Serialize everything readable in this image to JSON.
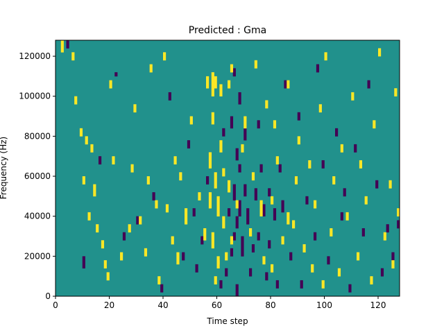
{
  "chart_data": {
    "type": "heatmap",
    "title": "Predicted : Gma",
    "xlabel": "Time step",
    "ylabel": "Frequency (Hz)",
    "xlim": [
      0,
      128
    ],
    "ylim": [
      0,
      128000
    ],
    "x_ticks": [
      0,
      20,
      40,
      60,
      80,
      100,
      120
    ],
    "x_tick_labels": [
      "0",
      "20",
      "40",
      "60",
      "80",
      "100",
      "120"
    ],
    "y_ticks": [
      0,
      20000,
      40000,
      60000,
      80000,
      100000,
      120000
    ],
    "y_tick_labels": [
      "0",
      "20000",
      "40000",
      "60000",
      "80000",
      "100000",
      "120000"
    ],
    "grid": false,
    "colors": {
      "background": "#21918c",
      "high": "#fde725",
      "low": "#440154"
    },
    "n_time_steps": 128,
    "n_frequency_bins": 64,
    "freq_bin_hz": 2000,
    "high_segments": [
      [
        2,
        122000,
        128000
      ],
      [
        6,
        118000,
        122000
      ],
      [
        7,
        96000,
        100000
      ],
      [
        9,
        80000,
        84000
      ],
      [
        10,
        56000,
        60000
      ],
      [
        11,
        76000,
        80000
      ],
      [
        12,
        38000,
        42000
      ],
      [
        13,
        72000,
        76000
      ],
      [
        14,
        50000,
        56000
      ],
      [
        15,
        32000,
        36000
      ],
      [
        17,
        24000,
        28000
      ],
      [
        18,
        14000,
        18000
      ],
      [
        19,
        8000,
        12000
      ],
      [
        20,
        104000,
        108000
      ],
      [
        21,
        66000,
        70000
      ],
      [
        24,
        18000,
        22000
      ],
      [
        27,
        32000,
        36000
      ],
      [
        28,
        62000,
        66000
      ],
      [
        29,
        92000,
        96000
      ],
      [
        31,
        36000,
        40000
      ],
      [
        33,
        20000,
        24000
      ],
      [
        34,
        56000,
        60000
      ],
      [
        35,
        112000,
        116000
      ],
      [
        37,
        44000,
        48000
      ],
      [
        38,
        6000,
        10000
      ],
      [
        40,
        118000,
        122000
      ],
      [
        41,
        42000,
        46000
      ],
      [
        43,
        26000,
        30000
      ],
      [
        45,
        16000,
        22000
      ],
      [
        46,
        58000,
        62000
      ],
      [
        48,
        36000,
        44000
      ],
      [
        50,
        86000,
        90000
      ],
      [
        53,
        48000,
        52000
      ],
      [
        55,
        28000,
        34000
      ],
      [
        56,
        104000,
        110000
      ],
      [
        57,
        68000,
        72000
      ],
      [
        57,
        44000,
        52000
      ],
      [
        58,
        24000,
        32000
      ],
      [
        58,
        86000,
        92000
      ],
      [
        58,
        100000,
        112000
      ],
      [
        59,
        6000,
        10000
      ],
      [
        59,
        54000,
        62000
      ],
      [
        60,
        40000,
        50000
      ],
      [
        60,
        14000,
        18000
      ],
      [
        61,
        72000,
        78000
      ],
      [
        61,
        100000,
        106000
      ],
      [
        62,
        34000,
        40000
      ],
      [
        62,
        60000,
        64000
      ],
      [
        63,
        18000,
        22000
      ],
      [
        64,
        52000,
        58000
      ],
      [
        64,
        104000,
        108000
      ],
      [
        65,
        26000,
        30000
      ],
      [
        65,
        112000,
        116000
      ],
      [
        67,
        44000,
        48000
      ],
      [
        69,
        72000,
        76000
      ],
      [
        70,
        84000,
        90000
      ],
      [
        72,
        30000,
        34000
      ],
      [
        73,
        58000,
        62000
      ],
      [
        74,
        114000,
        118000
      ],
      [
        76,
        40000,
        48000
      ],
      [
        77,
        16000,
        20000
      ],
      [
        78,
        94000,
        98000
      ],
      [
        80,
        46000,
        50000
      ],
      [
        80,
        12000,
        16000
      ],
      [
        81,
        84000,
        88000
      ],
      [
        82,
        66000,
        70000
      ],
      [
        84,
        26000,
        30000
      ],
      [
        86,
        104000,
        108000
      ],
      [
        88,
        34000,
        38000
      ],
      [
        89,
        56000,
        60000
      ],
      [
        90,
        76000,
        80000
      ],
      [
        92,
        22000,
        26000
      ],
      [
        94,
        64000,
        68000
      ],
      [
        96,
        44000,
        48000
      ],
      [
        98,
        92000,
        96000
      ],
      [
        99,
        4000,
        8000
      ],
      [
        100,
        118000,
        122000
      ],
      [
        102,
        30000,
        34000
      ],
      [
        103,
        56000,
        60000
      ],
      [
        105,
        10000,
        14000
      ],
      [
        106,
        72000,
        76000
      ],
      [
        108,
        38000,
        42000
      ],
      [
        110,
        98000,
        102000
      ],
      [
        112,
        18000,
        22000
      ],
      [
        113,
        64000,
        68000
      ],
      [
        115,
        46000,
        50000
      ],
      [
        117,
        6000,
        10000
      ],
      [
        118,
        84000,
        88000
      ],
      [
        120,
        120000,
        124000
      ],
      [
        122,
        28000,
        32000
      ],
      [
        124,
        54000,
        58000
      ],
      [
        125,
        14000,
        18000
      ],
      [
        126,
        100000,
        104000
      ],
      [
        127,
        40000,
        44000
      ],
      [
        95,
        12000,
        16000
      ],
      [
        44,
        66000,
        70000
      ],
      [
        86,
        36000,
        42000
      ],
      [
        60,
        16000,
        20000
      ],
      [
        59,
        104000,
        110000
      ],
      [
        57,
        64000,
        68000
      ]
    ],
    "low_segments": [
      [
        4,
        124000,
        128000
      ],
      [
        10,
        14000,
        20000
      ],
      [
        16,
        66000,
        70000
      ],
      [
        22,
        110000,
        112000
      ],
      [
        25,
        28000,
        32000
      ],
      [
        30,
        36000,
        40000
      ],
      [
        36,
        48000,
        52000
      ],
      [
        39,
        2000,
        6000
      ],
      [
        42,
        98000,
        102000
      ],
      [
        47,
        18000,
        22000
      ],
      [
        49,
        74000,
        78000
      ],
      [
        51,
        40000,
        44000
      ],
      [
        52,
        12000,
        16000
      ],
      [
        54,
        26000,
        30000
      ],
      [
        56,
        56000,
        60000
      ],
      [
        62,
        80000,
        84000
      ],
      [
        63,
        10000,
        14000
      ],
      [
        64,
        40000,
        44000
      ],
      [
        65,
        20000,
        24000
      ],
      [
        65,
        84000,
        90000
      ],
      [
        66,
        48000,
        56000
      ],
      [
        66,
        28000,
        32000
      ],
      [
        66,
        110000,
        114000
      ],
      [
        67,
        34000,
        40000
      ],
      [
        67,
        68000,
        74000
      ],
      [
        67,
        0,
        6000
      ],
      [
        68,
        40000,
        48000
      ],
      [
        68,
        62000,
        66000
      ],
      [
        68,
        96000,
        102000
      ],
      [
        69,
        20000,
        30000
      ],
      [
        70,
        50000,
        56000
      ],
      [
        70,
        78000,
        84000
      ],
      [
        71,
        36000,
        44000
      ],
      [
        72,
        10000,
        14000
      ],
      [
        73,
        22000,
        26000
      ],
      [
        74,
        48000,
        54000
      ],
      [
        75,
        28000,
        32000
      ],
      [
        75,
        84000,
        88000
      ],
      [
        76,
        62000,
        66000
      ],
      [
        77,
        40000,
        46000
      ],
      [
        78,
        8000,
        12000
      ],
      [
        79,
        24000,
        28000
      ],
      [
        79,
        50000,
        54000
      ],
      [
        81,
        38000,
        44000
      ],
      [
        82,
        4000,
        8000
      ],
      [
        83,
        62000,
        66000
      ],
      [
        84,
        42000,
        48000
      ],
      [
        85,
        104000,
        108000
      ],
      [
        87,
        18000,
        22000
      ],
      [
        89,
        56000,
        60000
      ],
      [
        90,
        88000,
        92000
      ],
      [
        91,
        4000,
        8000
      ],
      [
        93,
        46000,
        50000
      ],
      [
        96,
        28000,
        32000
      ],
      [
        97,
        112000,
        116000
      ],
      [
        99,
        64000,
        68000
      ],
      [
        101,
        16000,
        20000
      ],
      [
        104,
        80000,
        84000
      ],
      [
        106,
        38000,
        42000
      ],
      [
        107,
        50000,
        54000
      ],
      [
        109,
        2000,
        6000
      ],
      [
        111,
        72000,
        76000
      ],
      [
        114,
        30000,
        34000
      ],
      [
        116,
        104000,
        108000
      ],
      [
        119,
        54000,
        58000
      ],
      [
        121,
        10000,
        14000
      ],
      [
        123,
        32000,
        36000
      ],
      [
        125,
        18000,
        22000
      ],
      [
        127,
        34000,
        38000
      ],
      [
        61,
        4000,
        8000
      ]
    ]
  }
}
